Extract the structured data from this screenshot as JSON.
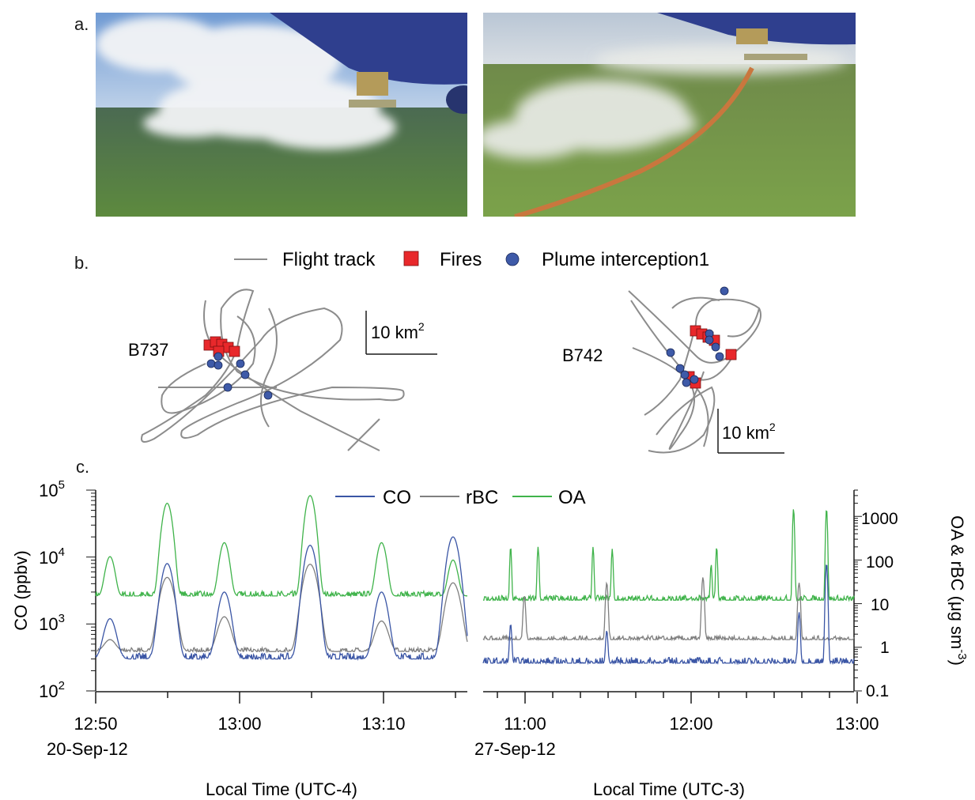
{
  "panels": {
    "a": {
      "label": "a."
    },
    "b": {
      "label": "b."
    },
    "c": {
      "label": "c."
    }
  },
  "map_legend": {
    "items": [
      {
        "name": "Flight track",
        "kind": "line",
        "color": "#8c8c8c"
      },
      {
        "name": "Fires",
        "kind": "square",
        "color": "#e8282b"
      },
      {
        "name": "Plume interception1",
        "kind": "circle",
        "color": "#3e5aa8"
      }
    ]
  },
  "maps": [
    {
      "name": "B737",
      "scale_label": "10 km",
      "scale_exp": "2"
    },
    {
      "name": "B742",
      "scale_label": "10 km",
      "scale_exp": "2"
    }
  ],
  "timeseries_legend": {
    "items": [
      {
        "name": "CO",
        "color": "#3a55a5"
      },
      {
        "name": "rBC",
        "color": "#7f7f7f"
      },
      {
        "name": "OA",
        "color": "#3fb34a"
      }
    ]
  },
  "axes": {
    "left_label": "CO (ppbv)",
    "left_ticks": [
      {
        "base": "10",
        "exp": "2"
      },
      {
        "base": "10",
        "exp": "3"
      },
      {
        "base": "10",
        "exp": "4"
      },
      {
        "base": "10",
        "exp": "5"
      }
    ],
    "right_label": "OA & rBC (μg sm",
    "right_label_exp": "-3",
    "right_label_tail": ")",
    "right_ticks": [
      "0.1",
      "1",
      "10",
      "100",
      "1000"
    ]
  },
  "chart_data": [
    {
      "type": "line",
      "title": "",
      "date": "20-Sep-12",
      "xlabel": "Local Time (UTC-4)",
      "x_ticks": [
        "12:50",
        "13:00",
        "13:10"
      ],
      "x_range": [
        "12:50",
        "13:16"
      ],
      "y_left_scale": "log",
      "y_left_range": [
        100,
        100000
      ],
      "y_right_scale": "log",
      "y_right_range": [
        0.1,
        4000
      ],
      "series": [
        {
          "name": "CO",
          "axis": "left",
          "baseline": 300,
          "peaks": [
            {
              "t": "12:51",
              "value": 1200
            },
            {
              "t": "12:55",
              "value": 8000
            },
            {
              "t": "12:59",
              "value": 3000
            },
            {
              "t": "13:05",
              "value": 15000
            },
            {
              "t": "13:10",
              "value": 3000
            },
            {
              "t": "13:15",
              "value": 20000
            }
          ]
        },
        {
          "name": "rBC",
          "axis": "right",
          "baseline": 0.8,
          "peaks": [
            {
              "t": "12:51",
              "value": 1.5
            },
            {
              "t": "12:55",
              "value": 40
            },
            {
              "t": "12:59",
              "value": 5
            },
            {
              "t": "13:05",
              "value": 80
            },
            {
              "t": "13:10",
              "value": 4
            },
            {
              "t": "13:15",
              "value": 30
            }
          ]
        },
        {
          "name": "OA",
          "axis": "right",
          "baseline": 15,
          "peaks": [
            {
              "t": "12:51",
              "value": 120
            },
            {
              "t": "12:55",
              "value": 2000
            },
            {
              "t": "12:59",
              "value": 250
            },
            {
              "t": "13:05",
              "value": 3000
            },
            {
              "t": "13:10",
              "value": 250
            },
            {
              "t": "13:15",
              "value": 100
            }
          ]
        }
      ]
    },
    {
      "type": "line",
      "title": "",
      "date": "27-Sep-12",
      "xlabel": "Local Time (UTC-3)",
      "x_ticks": [
        "11:00",
        "12:00",
        "13:00"
      ],
      "x_range": [
        "10:40",
        "13:00"
      ],
      "y_left_scale": "log",
      "y_left_range": [
        100,
        100000
      ],
      "y_right_scale": "log",
      "y_right_range": [
        0.1,
        4000
      ],
      "series": [
        {
          "name": "CO",
          "axis": "left",
          "baseline": 260,
          "peaks": [
            {
              "t": "10:55",
              "value": 1000
            },
            {
              "t": "11:30",
              "value": 800
            },
            {
              "t": "12:40",
              "value": 1500
            },
            {
              "t": "12:50",
              "value": 8000
            }
          ]
        },
        {
          "name": "rBC",
          "axis": "right",
          "baseline": 1.5,
          "peaks": [
            {
              "t": "11:00",
              "value": 15
            },
            {
              "t": "11:30",
              "value": 30
            },
            {
              "t": "12:05",
              "value": 40
            },
            {
              "t": "12:40",
              "value": 30
            }
          ]
        },
        {
          "name": "OA",
          "axis": "right",
          "baseline": 12,
          "peaks": [
            {
              "t": "10:55",
              "value": 200
            },
            {
              "t": "11:05",
              "value": 200
            },
            {
              "t": "11:25",
              "value": 200
            },
            {
              "t": "11:32",
              "value": 180
            },
            {
              "t": "12:08",
              "value": 80
            },
            {
              "t": "12:10",
              "value": 200
            },
            {
              "t": "12:38",
              "value": 1500
            },
            {
              "t": "12:50",
              "value": 1500
            }
          ]
        }
      ]
    }
  ]
}
